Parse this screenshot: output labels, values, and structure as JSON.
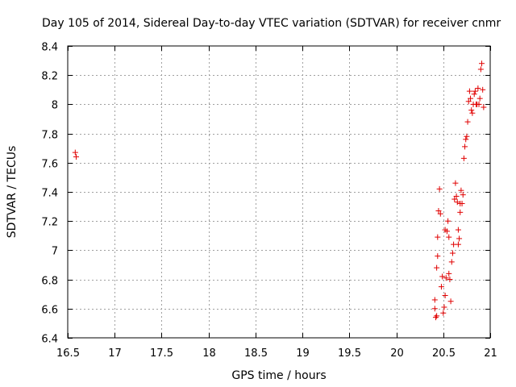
{
  "chart_data": {
    "type": "scatter",
    "title": "Day 105 of 2014, Sidereal Day-to-day VTEC variation (SDTVAR) for receiver cnmr",
    "xlabel": "GPS time / hours",
    "ylabel": "SDTVAR / TECUs",
    "xlim": [
      16.5,
      21
    ],
    "ylim": [
      6.4,
      8.4
    ],
    "xticks": [
      16.5,
      17,
      17.5,
      18,
      18.5,
      19,
      19.5,
      20,
      20.5,
      21
    ],
    "xtick_labels": [
      "16.5",
      "17",
      "17.5",
      "18",
      "18.5",
      "19",
      "19.5",
      "20",
      "20.5",
      "21"
    ],
    "yticks": [
      6.4,
      6.6,
      6.8,
      7,
      7.2,
      7.4,
      7.6,
      7.8,
      8,
      8.2,
      8.4
    ],
    "ytick_labels": [
      "6.4",
      "6.6",
      "6.8",
      "7",
      "7.2",
      "7.4",
      "7.6",
      "7.8",
      "8",
      "8.2",
      "8.4"
    ],
    "grid": true,
    "marker": "+",
    "color": "#e00000",
    "series": [
      {
        "name": "SDTVAR",
        "x": [
          16.58,
          16.59,
          20.41,
          20.41,
          20.42,
          20.43,
          20.43,
          20.44,
          20.44,
          20.45,
          20.46,
          20.47,
          20.48,
          20.49,
          20.5,
          20.51,
          20.52,
          20.52,
          20.53,
          20.54,
          20.55,
          20.56,
          20.56,
          20.57,
          20.58,
          20.59,
          20.6,
          20.61,
          20.62,
          20.63,
          20.64,
          20.65,
          20.66,
          20.66,
          20.67,
          20.68,
          20.68,
          20.69,
          20.7,
          20.71,
          20.72,
          20.73,
          20.74,
          20.75,
          20.76,
          20.77,
          20.78,
          20.79,
          20.8,
          20.81,
          20.82,
          20.83,
          20.84,
          20.85,
          20.86,
          20.87,
          20.88,
          20.89,
          20.9,
          20.91,
          20.92,
          20.93
        ],
        "y": [
          7.67,
          7.64,
          6.66,
          6.6,
          6.54,
          6.55,
          6.88,
          6.96,
          7.09,
          7.27,
          7.42,
          7.25,
          6.75,
          6.82,
          6.57,
          6.61,
          6.69,
          7.14,
          6.81,
          7.13,
          7.2,
          7.09,
          6.84,
          6.8,
          6.65,
          6.92,
          6.98,
          7.04,
          7.35,
          7.46,
          7.37,
          7.33,
          7.14,
          7.04,
          7.08,
          7.26,
          7.32,
          7.41,
          7.32,
          7.38,
          7.63,
          7.71,
          7.76,
          7.78,
          7.88,
          8.02,
          8.09,
          8.04,
          7.96,
          7.94,
          8.0,
          8.07,
          8.09,
          8.0,
          8.0,
          8.11,
          8.0,
          8.04,
          8.24,
          8.28,
          8.1,
          7.98
        ]
      }
    ]
  }
}
